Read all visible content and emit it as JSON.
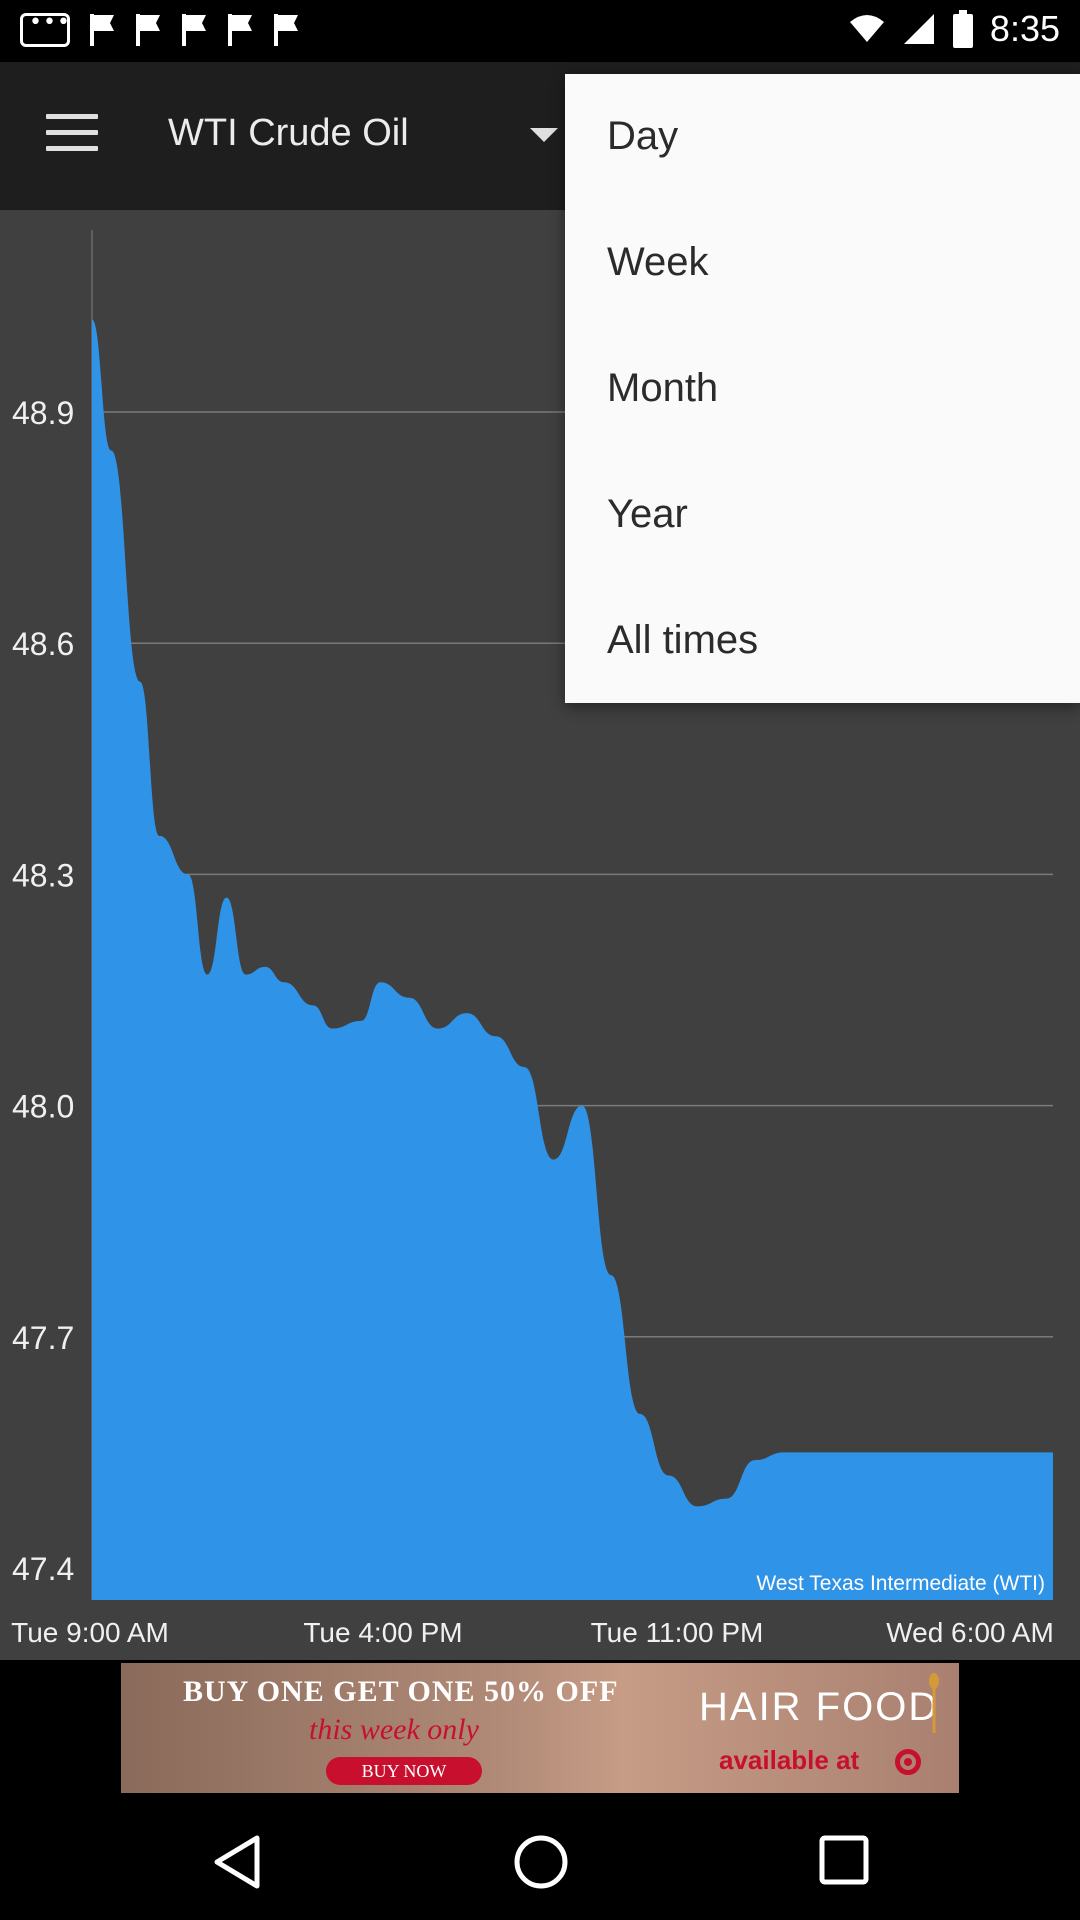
{
  "status_bar": {
    "time": "8:35"
  },
  "app_bar": {
    "title": "WTI Crude Oil"
  },
  "menu": {
    "items": [
      "Day",
      "Week",
      "Month",
      "Year",
      "All times"
    ]
  },
  "chart_data": {
    "type": "area",
    "series": [
      {
        "name": "West Texas Intermediate (WTI)",
        "color": "#2f93e8",
        "x_frac": [
          0.0,
          0.02,
          0.05,
          0.07,
          0.1,
          0.12,
          0.14,
          0.16,
          0.18,
          0.2,
          0.23,
          0.25,
          0.28,
          0.3,
          0.33,
          0.36,
          0.39,
          0.42,
          0.45,
          0.48,
          0.51,
          0.54,
          0.57,
          0.6,
          0.63,
          0.66,
          0.69,
          0.72,
          0.74,
          0.76,
          0.78,
          0.8,
          0.83,
          0.85,
          0.87,
          0.89,
          0.91,
          0.93,
          0.95,
          0.97,
          1.0
        ],
        "values": [
          49.02,
          48.85,
          48.55,
          48.35,
          48.3,
          48.17,
          48.27,
          48.17,
          48.18,
          48.16,
          48.13,
          48.1,
          48.11,
          48.16,
          48.14,
          48.1,
          48.12,
          48.09,
          48.05,
          47.93,
          48.0,
          47.78,
          47.6,
          47.52,
          47.48,
          47.49,
          47.54,
          47.55,
          47.55,
          47.55,
          47.55,
          47.55,
          47.55,
          47.55,
          47.55,
          47.55,
          47.55,
          47.55,
          47.55,
          47.55,
          47.55
        ]
      }
    ],
    "y_ticks": [
      "48.9",
      "48.6",
      "48.3",
      "48.0",
      "47.7",
      "47.4"
    ],
    "x_ticks": [
      "Tue 9:00 AM",
      "Tue 4:00 PM",
      "Tue 11:00 PM",
      "Wed 6:00 AM"
    ],
    "legend_label": "West Texas Intermediate (WTI)",
    "ylim": [
      47.4,
      49.1
    ],
    "grid": true,
    "legend_position": "bottom-right"
  },
  "ad": {
    "headline": "BUY ONE GET ONE 50% OFF",
    "subline": "this week only",
    "button": "BUY NOW",
    "brand": "HAIR FOOD",
    "available": "available at"
  }
}
